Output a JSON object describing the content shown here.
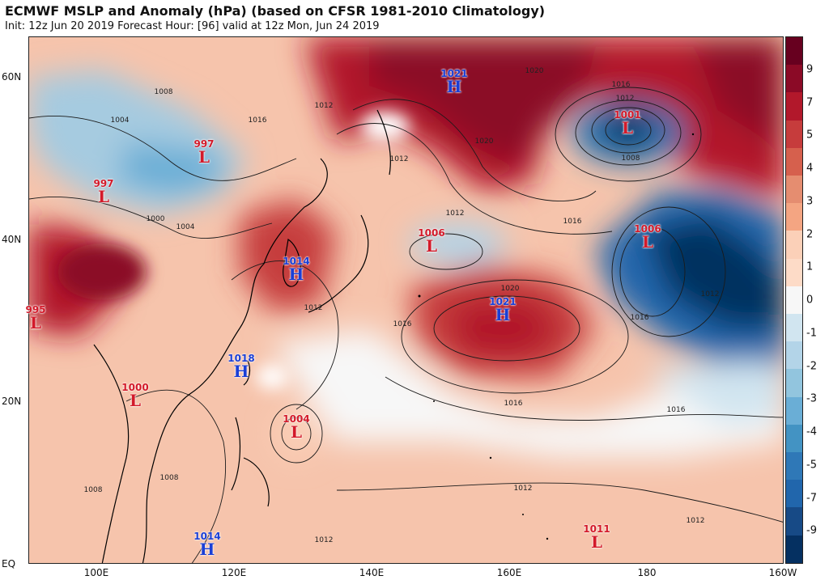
{
  "header": {
    "title": "ECMWF MSLP and Anomaly (hPa) (based on CFSR 1981-2010 Climatology)",
    "subtitle": "Init: 12z Jun 20 2019   Forecast Hour: [96]   valid at 12z Mon, Jun 24 2019"
  },
  "axes": {
    "lat_labels": [
      "60N",
      "40N",
      "20N",
      "EQ"
    ],
    "lon_labels": [
      "100E",
      "120E",
      "140E",
      "160E",
      "180",
      "160W"
    ]
  },
  "colorbar": {
    "ticks": [
      "9",
      "7",
      "5",
      "4",
      "3",
      "2",
      "1",
      "0",
      "-1",
      "-2",
      "-3",
      "-4",
      "-5",
      "-7",
      "-9"
    ],
    "colors": [
      "#67001f",
      "#8b0a26",
      "#b2182b",
      "#c63c3c",
      "#d6604d",
      "#e58d70",
      "#f4a582",
      "#fbd0b8",
      "#fddbc7",
      "#f7f7f7",
      "#d1e5f0",
      "#b3d4e8",
      "#92c5de",
      "#6aaed6",
      "#4393c3",
      "#2f78b7",
      "#2166ac",
      "#174a86",
      "#053061"
    ]
  },
  "systems": [
    {
      "kind": "H",
      "value": "1021"
    },
    {
      "kind": "L",
      "value": "1001"
    },
    {
      "kind": "L",
      "value": "997"
    },
    {
      "kind": "L",
      "value": "997"
    },
    {
      "kind": "L",
      "value": "1006"
    },
    {
      "kind": "H",
      "value": "1014"
    },
    {
      "kind": "L",
      "value": "1006"
    },
    {
      "kind": "H",
      "value": "1021"
    },
    {
      "kind": "L",
      "value": "995"
    },
    {
      "kind": "H",
      "value": "1018"
    },
    {
      "kind": "L",
      "value": "1000"
    },
    {
      "kind": "L",
      "value": "1004"
    },
    {
      "kind": "H",
      "value": "1014"
    },
    {
      "kind": "L",
      "value": "1011"
    }
  ],
  "isobar_labels": [
    "1020",
    "1016",
    "1012",
    "1008",
    "1004",
    "1000",
    "1012",
    "1016",
    "1016",
    "1012",
    "1008",
    "1004",
    "1012",
    "1020",
    "1016",
    "1012",
    "1016",
    "1008",
    "1016",
    "1012",
    "1012",
    "1012",
    "1008",
    "1012",
    "1020",
    "1016"
  ]
}
